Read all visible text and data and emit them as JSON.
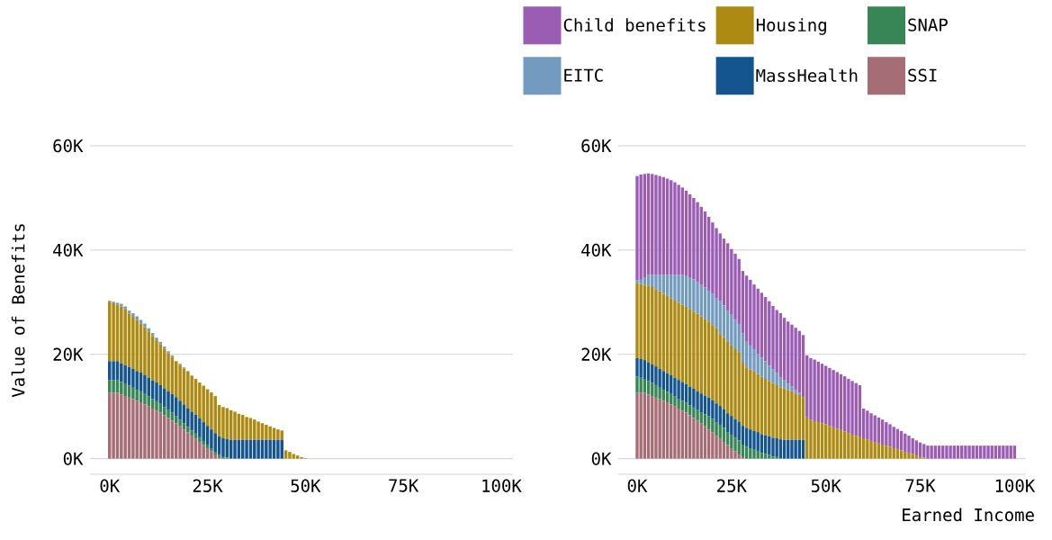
{
  "chart_data": [
    {
      "type": "bar",
      "stacked": true,
      "ylabel": "Value of Benefits",
      "x": [
        0,
        1000,
        2000,
        3000,
        4000,
        5000,
        6000,
        7000,
        8000,
        9000,
        10000,
        11000,
        12000,
        13000,
        14000,
        15000,
        16000,
        17000,
        18000,
        19000,
        20000,
        21000,
        22000,
        23000,
        24000,
        25000,
        26000,
        27000,
        28000,
        29000,
        30000,
        31000,
        32000,
        33000,
        34000,
        35000,
        36000,
        37000,
        38000,
        39000,
        40000,
        41000,
        42000,
        43000,
        44000,
        45000,
        46000,
        47000,
        48000,
        49000,
        50000
      ],
      "series": [
        {
          "color": "#a56d75",
          "values": [
            12600,
            12600,
            12600,
            12300,
            12000,
            11700,
            11400,
            11100,
            10800,
            10400,
            10000,
            9600,
            9200,
            8800,
            8300,
            7800,
            7300,
            6800,
            6200,
            5600,
            5000,
            4400,
            3800,
            3200,
            2600,
            2000,
            1400,
            800,
            300,
            0,
            0,
            0,
            0,
            0,
            0,
            0,
            0,
            0,
            0,
            0,
            0,
            0,
            0,
            0,
            0,
            0,
            0,
            0,
            0,
            0,
            0
          ]
        },
        {
          "color": "#388555",
          "values": [
            2500,
            2500,
            2500,
            2400,
            2300,
            2300,
            2200,
            2100,
            2100,
            2000,
            1900,
            1800,
            1800,
            1700,
            1600,
            1500,
            1500,
            1400,
            1300,
            1200,
            1100,
            1000,
            1000,
            900,
            800,
            700,
            600,
            500,
            400,
            300,
            200,
            0,
            0,
            0,
            0,
            0,
            0,
            0,
            0,
            0,
            0,
            0,
            0,
            0,
            0,
            0,
            0,
            0,
            0,
            0,
            0
          ]
        },
        {
          "color": "#14548f",
          "values": [
            3600,
            3600,
            3600,
            3600,
            3600,
            3600,
            3600,
            3600,
            3600,
            3600,
            3600,
            3600,
            3600,
            3600,
            3600,
            3600,
            3600,
            3600,
            3600,
            3600,
            3600,
            3600,
            3600,
            3600,
            3600,
            3600,
            3600,
            3600,
            3600,
            3600,
            3600,
            3600,
            3600,
            3600,
            3600,
            3600,
            3600,
            3600,
            3600,
            3600,
            3600,
            3600,
            3600,
            3600,
            3600,
            0,
            0,
            0,
            0,
            0,
            0
          ]
        },
        {
          "color": "#ad8a12",
          "values": [
            11400,
            11100,
            10800,
            10900,
            10700,
            10200,
            10000,
            9800,
            9400,
            9200,
            8900,
            8500,
            8100,
            7800,
            7600,
            7300,
            7100,
            6900,
            6900,
            6900,
            7000,
            6900,
            6900,
            6900,
            7000,
            7000,
            7100,
            7100,
            6000,
            6000,
            5900,
            5700,
            5400,
            5000,
            4800,
            4400,
            4200,
            3900,
            3500,
            3200,
            2900,
            2600,
            2300,
            2000,
            1800,
            1600,
            1300,
            900,
            600,
            300,
            100
          ]
        },
        {
          "color": "#739bbf",
          "values": [
            200,
            300,
            400,
            500,
            600,
            600,
            700,
            700,
            700,
            700,
            600,
            600,
            500,
            500,
            400,
            400,
            300,
            null,
            200,
            200,
            100,
            100,
            0,
            0,
            0,
            0,
            0,
            0,
            0,
            0,
            0,
            0,
            0,
            0,
            0,
            0,
            0,
            0,
            0,
            0,
            0,
            0,
            0,
            0,
            0,
            0,
            0,
            0,
            0,
            0,
            0
          ]
        }
      ],
      "xlim": [
        -5000,
        103000
      ],
      "xticks": [
        {
          "value": 0,
          "label": "0K"
        },
        {
          "value": 25000,
          "label": "25K"
        },
        {
          "value": 50000,
          "label": "50K"
        },
        {
          "value": 75000,
          "label": "75K"
        },
        {
          "value": 100000,
          "label": "100K"
        }
      ],
      "ylim": [
        -3000,
        60000
      ],
      "yticks": [
        {
          "value": 0,
          "label": "0K"
        },
        {
          "value": 20000,
          "label": "20K"
        },
        {
          "value": 40000,
          "label": "40K"
        },
        {
          "value": 60000,
          "label": "60K"
        }
      ],
      "grid": "y"
    },
    {
      "type": "bar",
      "stacked": true,
      "xlabel": "Earned Income",
      "legend": "top",
      "x": [
        0,
        1000,
        2000,
        3000,
        4000,
        5000,
        6000,
        7000,
        8000,
        9000,
        10000,
        11000,
        12000,
        13000,
        14000,
        15000,
        16000,
        17000,
        18000,
        19000,
        20000,
        21000,
        22000,
        23000,
        24000,
        25000,
        26000,
        27000,
        28000,
        29000,
        30000,
        31000,
        32000,
        33000,
        34000,
        35000,
        36000,
        37000,
        38000,
        39000,
        40000,
        41000,
        42000,
        43000,
        44000,
        45000,
        46000,
        47000,
        48000,
        49000,
        50000,
        51000,
        52000,
        53000,
        54000,
        55000,
        56000,
        57000,
        58000,
        59000,
        60000,
        61000,
        62000,
        63000,
        64000,
        65000,
        66000,
        67000,
        68000,
        69000,
        70000,
        71000,
        72000,
        73000,
        74000,
        75000,
        76000,
        77000,
        78000,
        79000,
        80000,
        81000,
        82000,
        83000,
        84000,
        85000,
        86000,
        87000,
        88000,
        89000,
        90000,
        91000,
        92000,
        93000,
        94000,
        95000,
        96000,
        97000,
        98000,
        99000,
        100000
      ],
      "series": [
        {
          "name": "SSI",
          "color": "#a56d75",
          "values": [
            12600,
            12600,
            12600,
            12300,
            12000,
            11700,
            11400,
            11100,
            10800,
            10400,
            10000,
            9600,
            9200,
            8800,
            8300,
            7800,
            7300,
            6800,
            6200,
            5600,
            5000,
            4400,
            3800,
            3200,
            2600,
            2000,
            1400,
            800,
            300,
            0,
            0,
            0,
            0,
            0,
            0,
            0,
            0,
            0,
            0,
            0,
            0,
            0,
            0,
            0,
            0,
            0,
            0,
            0,
            0,
            0,
            0,
            0,
            0,
            0,
            0,
            0,
            0,
            0,
            0,
            0,
            0,
            0,
            0,
            0,
            0,
            0,
            0,
            0,
            0,
            0,
            0,
            0,
            0,
            0,
            0,
            0,
            0,
            0,
            0,
            0,
            0,
            0,
            0,
            0,
            0,
            0,
            0,
            0,
            0,
            0,
            0,
            0,
            0,
            0,
            0,
            0,
            0,
            0,
            0,
            0,
            0
          ]
        },
        {
          "name": "SNAP",
          "color": "#388555",
          "values": [
            3100,
            2900,
            2700,
            2600,
            2500,
            2400,
            2200,
            2100,
            2000,
            2000,
            1900,
            1900,
            1900,
            1900,
            1900,
            2000,
            2000,
            2100,
            2300,
            2500,
            2600,
            2600,
            2700,
            2700,
            2500,
            2600,
            2600,
            2700,
            2400,
            2300,
            2000,
            1700,
            1500,
            1100,
            900,
            700,
            400,
            300,
            100,
            0,
            0,
            0,
            0,
            0,
            0,
            0,
            0,
            0,
            0,
            0,
            0,
            0,
            0,
            0,
            0,
            0,
            0,
            0,
            0,
            0,
            0,
            0,
            0,
            0,
            0,
            0,
            0,
            0,
            0,
            0,
            0,
            0,
            0,
            0,
            0,
            0,
            0,
            0,
            0,
            0,
            0,
            0,
            0,
            0,
            0,
            0,
            0,
            0,
            0,
            0,
            0,
            0,
            0,
            0,
            0,
            0,
            0,
            0,
            0,
            0,
            0
          ]
        },
        {
          "name": "MassHealth",
          "color": "#14548f",
          "values": [
            3600,
            3600,
            3600,
            3600,
            3600,
            3600,
            3600,
            3600,
            3600,
            3600,
            3600,
            3600,
            3600,
            3600,
            3600,
            3600,
            3600,
            3600,
            3600,
            3600,
            3600,
            3600,
            3600,
            3600,
            3600,
            3600,
            3600,
            3600,
            3600,
            3600,
            3600,
            3600,
            3600,
            3600,
            3600,
            3600,
            3600,
            3600,
            3600,
            3600,
            3600,
            3600,
            3600,
            3600,
            3600,
            0,
            0,
            0,
            0,
            0,
            0,
            0,
            0,
            0,
            0,
            0,
            0,
            0,
            0,
            0,
            0,
            0,
            0,
            0,
            0,
            0,
            0,
            0,
            0,
            0,
            0,
            0,
            0,
            0,
            0,
            0,
            0,
            0,
            0,
            0,
            0,
            0,
            0,
            0,
            0,
            0,
            0,
            0,
            0,
            0,
            0,
            0,
            0,
            0,
            0,
            0,
            0,
            0,
            0,
            0,
            0
          ]
        },
        {
          "name": "Housing",
          "color": "#ad8a12",
          "values": [
            14300,
            14400,
            14400,
            14700,
            14800,
            14800,
            14900,
            14800,
            14800,
            14700,
            14800,
            14800,
            14800,
            14800,
            14900,
            14800,
            14900,
            14800,
            14600,
            14600,
            14400,
            14400,
            13800,
            13800,
            13800,
            13500,
            13400,
            13200,
            12100,
            11600,
            11500,
            11400,
            11100,
            11000,
            10800,
            10600,
            10500,
            10200,
            10000,
            9900,
            9500,
            9300,
            8900,
            8600,
            8200,
            7900,
            7400,
            7200,
            7000,
            6800,
            6600,
            6300,
            6000,
            5700,
            5500,
            5200,
            4900,
            4600,
            4400,
            4100,
            3900,
            3700,
            3400,
            3200,
            2900,
            2700,
            2500,
            2300,
            2000,
            1800,
            1600,
            1300,
            1000,
            900,
            600,
            300,
            200,
            0,
            0,
            0,
            0,
            0,
            0,
            0,
            0,
            0,
            0,
            0,
            0,
            0,
            0,
            0,
            0,
            0,
            0,
            0,
            0,
            0,
            0,
            0,
            0
          ]
        },
        {
          "name": "EITC",
          "color": "#739bbf",
          "values": [
            600,
            800,
            1500,
            2000,
            2300,
            2700,
            3100,
            3600,
            4000,
            4500,
            4900,
            5300,
            5700,
            5900,
            6100,
            6200,
            6100,
            6000,
            6100,
            5900,
            6000,
            5700,
            6300,
            6100,
            5900,
            5900,
            5600,
            5400,
            5600,
            4900,
            4600,
            4300,
            3900,
            3700,
            3400,
            2900,
            2600,
            2300,
            1900,
            1600,
            1300,
            900,
            700,
            400,
            null,
            0,
            0,
            0,
            0,
            0,
            0,
            0,
            0,
            0,
            0,
            0,
            0,
            0,
            0,
            0,
            0,
            0,
            0,
            0,
            0,
            0,
            0,
            0,
            0,
            0,
            0,
            0,
            0,
            0,
            0,
            0,
            0,
            0,
            0,
            0,
            0,
            0,
            0,
            0,
            0,
            0,
            0,
            0,
            0,
            0,
            0,
            0,
            0,
            0,
            0,
            0,
            0,
            0,
            0,
            0,
            0
          ]
        },
        {
          "name": "Child benefits",
          "color": "#9b5cb4",
          "values": [
            20000,
            20200,
            19800,
            19500,
            19400,
            19200,
            19000,
            18800,
            18500,
            18200,
            17800,
            17300,
            16800,
            16400,
            15900,
            15600,
            15300,
            15000,
            14600,
            14200,
            13700,
            13500,
            13000,
            12800,
            12900,
            12600,
            12700,
            12600,
            12000,
            12700,
            12600,
            12400,
            12500,
            12400,
            12300,
            12400,
            12200,
            12100,
            12300,
            11900,
            11900,
            11900,
            11900,
            11900,
            11900,
            11900,
            11900,
            11800,
            11600,
            11400,
            11200,
            11100,
            11000,
            10900,
            10700,
            10600,
            10400,
            10300,
            10100,
            10000,
            5700,
            5500,
            5300,
            5100,
            5000,
            4800,
            4500,
            4300,
            4100,
            3900,
            3700,
            3500,
            3400,
            3000,
            2900,
            2800,
            2600,
            2500,
            2500,
            2500,
            2500,
            2500,
            2500,
            2500,
            2500,
            2500,
            2500,
            2500,
            2500,
            2500,
            2500,
            2500,
            2500,
            2500,
            2500,
            2500,
            2500,
            2500,
            2500,
            2500,
            2500
          ]
        }
      ],
      "xlim": [
        -5000,
        103000
      ],
      "xticks": [
        {
          "value": 0,
          "label": "0K"
        },
        {
          "value": 25000,
          "label": "25K"
        },
        {
          "value": 50000,
          "label": "50K"
        },
        {
          "value": 75000,
          "label": "75K"
        },
        {
          "value": 100000,
          "label": "100K"
        }
      ],
      "ylim": [
        -3000,
        60000
      ],
      "yticks": [
        {
          "value": 0,
          "label": "0K"
        },
        {
          "value": 20000,
          "label": "20K"
        },
        {
          "value": 40000,
          "label": "40K"
        },
        {
          "value": 60000,
          "label": "60K"
        }
      ],
      "grid": "y"
    }
  ]
}
